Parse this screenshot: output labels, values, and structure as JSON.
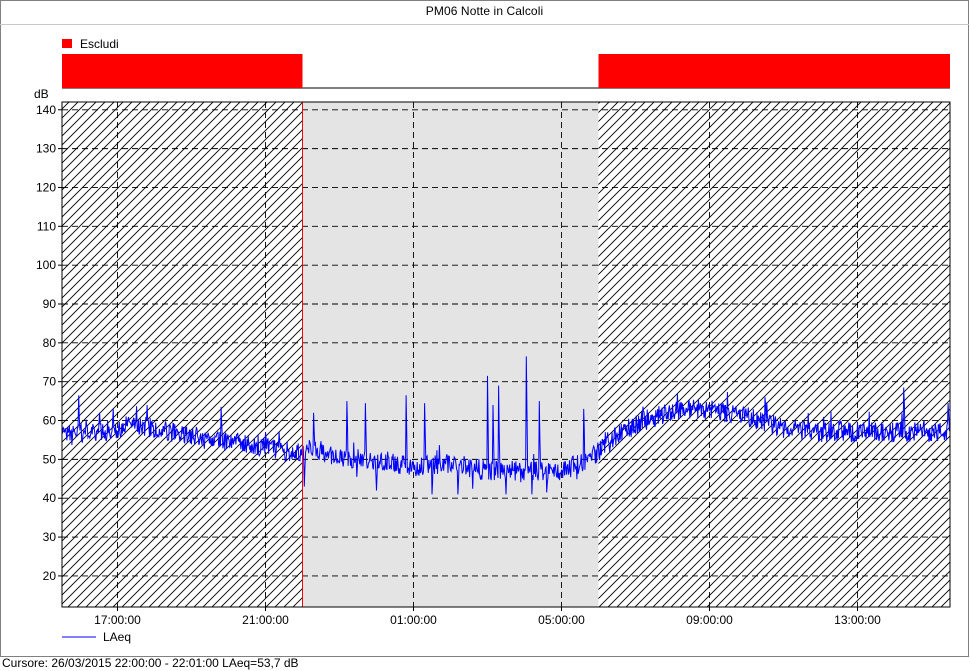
{
  "window": {
    "title": "PM06 Notte  in Calcoli"
  },
  "status": {
    "cursor_text": "Cursore: 26/03/2015 22:00:00 - 22:01:00  LAeq=53,7 dB"
  },
  "colors": {
    "exclude": "#ff0000",
    "series": "#0000ff",
    "included_bg": "#e4e4e4",
    "cursor_line": "#ff0000"
  },
  "chart_data": {
    "type": "line",
    "title": "PM06 Notte  in Calcoli",
    "ylabel": "dB",
    "xlabel": "",
    "ylim": [
      12,
      142
    ],
    "yticks": [
      20,
      30,
      40,
      50,
      60,
      70,
      80,
      90,
      100,
      110,
      120,
      130,
      140
    ],
    "xlim": [
      "15:30",
      "15:30 (+1 day)"
    ],
    "xlim_hours": [
      15.5,
      39.5
    ],
    "xticks": [
      "17:00:00",
      "21:00:00",
      "01:00:00",
      "05:00:00",
      "09:00:00",
      "13:00:00"
    ],
    "xticks_hours": [
      17,
      21,
      25,
      29,
      33,
      37
    ],
    "grid": true,
    "legend_placement": "bottom-left",
    "exclusion_legend": "Escludi",
    "excluded_ranges_hours": [
      [
        15.5,
        22.0
      ],
      [
        30.0,
        39.5
      ]
    ],
    "cursor_time_hours": 22.0,
    "series": [
      {
        "name": "LAeq",
        "profile_hours": [
          15.5,
          16.5,
          17.5,
          18.5,
          19.5,
          20.5,
          21.5,
          22.0,
          22.3,
          23.0,
          24.0,
          25.0,
          26.0,
          27.0,
          28.0,
          29.0,
          29.5,
          30.0,
          30.5,
          31.0,
          31.5,
          32.0,
          32.5,
          33.0,
          33.5,
          34.0,
          35.0,
          36.0,
          37.0,
          38.0,
          39.0,
          39.5
        ],
        "profile_db": [
          56,
          57,
          59,
          57,
          55,
          54,
          52,
          52,
          53,
          50,
          50,
          48,
          49,
          47,
          47,
          47,
          49,
          52,
          56,
          59,
          61,
          62.5,
          63,
          63,
          62,
          61,
          58,
          57,
          57,
          57,
          57,
          57
        ],
        "noise_db": 2.6,
        "peaks": [
          [
            15.95,
            66.5
          ],
          [
            17.8,
            64
          ],
          [
            19.8,
            63.5
          ],
          [
            21.0,
            57
          ],
          [
            22.3,
            62
          ],
          [
            23.2,
            65
          ],
          [
            23.7,
            64.5
          ],
          [
            24.8,
            66.5
          ],
          [
            25.3,
            64.5
          ],
          [
            27.0,
            71.5
          ],
          [
            27.3,
            69
          ],
          [
            27.15,
            64
          ],
          [
            28.05,
            76.5
          ],
          [
            28.4,
            65
          ],
          [
            29.6,
            63
          ],
          [
            33.5,
            63
          ],
          [
            34.5,
            66
          ],
          [
            36.5,
            60
          ],
          [
            38.25,
            68.5
          ],
          [
            39.45,
            64.5
          ]
        ],
        "dips": [
          [
            22.05,
            43
          ],
          [
            24.0,
            42
          ],
          [
            25.5,
            41
          ],
          [
            26.2,
            41
          ],
          [
            27.5,
            41
          ],
          [
            28.6,
            41.5
          ],
          [
            28.2,
            41
          ]
        ]
      }
    ]
  }
}
